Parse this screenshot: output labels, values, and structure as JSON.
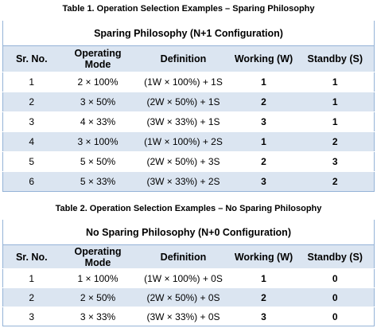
{
  "tables": [
    {
      "caption": "Table 1. Operation Selection Examples – Sparing Philosophy",
      "title": "Sparing Philosophy (N+1 Configuration)",
      "headers": [
        "Sr. No.",
        "Operating Mode",
        "Definition",
        "Working (W)",
        "Standby (S)"
      ],
      "rows": [
        [
          "1",
          "2 × 100%",
          "(1W × 100%) + 1S",
          "1",
          "1"
        ],
        [
          "2",
          "3 × 50%",
          "(2W × 50%) + 1S",
          "2",
          "1"
        ],
        [
          "3",
          "4 × 33%",
          "(3W × 33%) + 1S",
          "3",
          "1"
        ],
        [
          "4",
          "3 × 100%",
          "(1W × 100%) + 2S",
          "1",
          "2"
        ],
        [
          "5",
          "5 × 50%",
          "(2W × 50%) + 3S",
          "2",
          "3"
        ],
        [
          "6",
          "5 × 33%",
          "(3W × 33%) + 2S",
          "3",
          "2"
        ]
      ]
    },
    {
      "caption": "Table 2. Operation Selection Examples – No Sparing Philosophy",
      "title": "No Sparing Philosophy (N+0 Configuration)",
      "headers": [
        "Sr. No.",
        "Operating Mode",
        "Definition",
        "Working (W)",
        "Standby (S)"
      ],
      "rows": [
        [
          "1",
          "1 × 100%",
          "(1W × 100%) + 0S",
          "1",
          "0"
        ],
        [
          "2",
          "2 × 50%",
          "(2W × 50%) + 0S",
          "2",
          "0"
        ],
        [
          "3",
          "3 × 33%",
          "(3W × 33%) + 0S",
          "3",
          "0"
        ]
      ]
    }
  ]
}
